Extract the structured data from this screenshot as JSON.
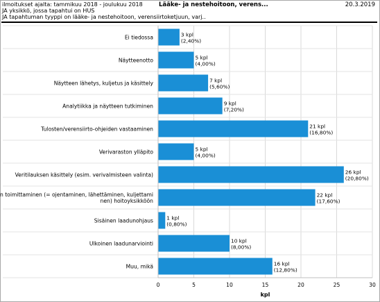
{
  "header": {
    "line1": "ilmoitukset ajalta: tammikuu 2018 - joulukuu 2018",
    "line2": "JA yksikkö, jossa tapahtui on HUS",
    "line3": "JA tapahtuman tyyppi on lääke- ja nestehoitoon, verensiirtoketjuun, varj..",
    "title": "Lääke- ja nestehoitoon, verens...",
    "date": "20.3.2019"
  },
  "chart_data": {
    "type": "bar",
    "orientation": "horizontal",
    "categories": [
      [
        "Ei tiedossa"
      ],
      [
        "Näytteenotto"
      ],
      [
        "Näytteen lähetys, kuljetus ja käsittely"
      ],
      [
        "Analytiikka ja näytteen tutkiminen"
      ],
      [
        "Tulosten/verensiirto-ohjeiden vastaaminen"
      ],
      [
        "Verivaraston ylläpito"
      ],
      [
        "Veritilauksen käsittely (esim. verivalmisteen valinta)"
      ],
      [
        "Veren toimittaminen (= ojentaminen, lähettäminen, kuljettami",
        "nen) hoitoyksikköön"
      ],
      [
        "Sisäinen laadunohjaus"
      ],
      [
        "Ulkoinen laadunarviointi"
      ],
      [
        "Muu, mikä"
      ]
    ],
    "values": [
      3,
      5,
      7,
      9,
      21,
      5,
      26,
      22,
      1,
      10,
      16
    ],
    "labels": [
      [
        "3 kpl",
        "(2,40%)"
      ],
      [
        "5 kpl",
        "(4,00%)"
      ],
      [
        "7 kpl",
        "(5,60%)"
      ],
      [
        "9 kpl",
        "(7,20%)"
      ],
      [
        "21 kpl",
        "(16,80%)"
      ],
      [
        "5 kpl",
        "(4,00%)"
      ],
      [
        "26 kpl",
        "(20,80%)"
      ],
      [
        "22 kpl",
        "(17,60%)"
      ],
      [
        "1 kpl",
        "(0,80%)"
      ],
      [
        "10 kpl",
        "(8,00%)"
      ],
      [
        "16 kpl",
        "(12,80%)"
      ]
    ],
    "xticks": [
      0,
      5,
      10,
      15,
      20,
      25,
      30
    ],
    "xlim": [
      0,
      30
    ],
    "xlabel": "kpl",
    "ylabel": "",
    "grid": true,
    "bar_color": "#1a8fd6"
  }
}
